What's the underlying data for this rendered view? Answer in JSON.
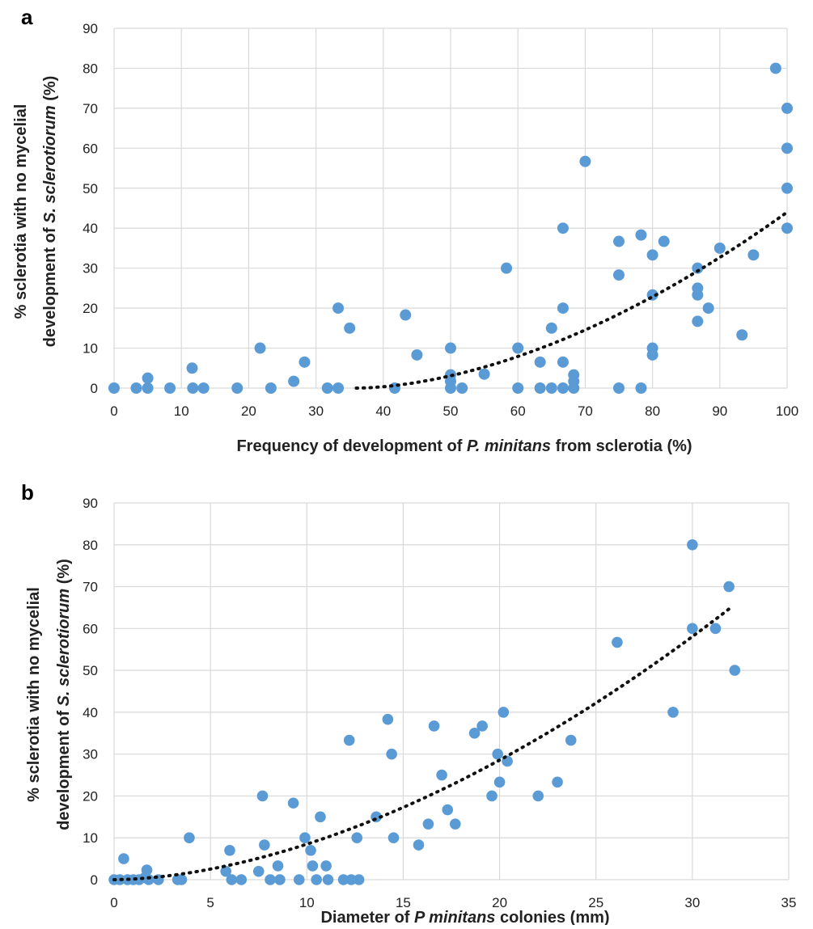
{
  "figure": {
    "panel_a": {
      "letter": "a"
    },
    "panel_b": {
      "letter": "b"
    }
  },
  "chart_data": [
    {
      "type": "scatter",
      "panel": "a",
      "title": "",
      "xlabel": {
        "pre": "Frequency of development of ",
        "italic": "P.  minitans",
        "post": " from sclerotia (%)"
      },
      "ylabel": {
        "line1": "% sclerotia with no mycelial",
        "line2_pre": "development of ",
        "line2_italic": "S. sclerotiorum",
        "line2_post": " (%)"
      },
      "xlim": [
        0,
        100
      ],
      "ylim": [
        0,
        90
      ],
      "xticks": [
        0,
        10,
        20,
        30,
        40,
        50,
        60,
        70,
        80,
        90,
        100
      ],
      "yticks": [
        0,
        10,
        20,
        30,
        40,
        50,
        60,
        70,
        80,
        90
      ],
      "grid": true,
      "marker_color": "#5b9bd5",
      "trendline": {
        "style": "dotted",
        "color": "#111111",
        "from": [
          36,
          0
        ],
        "to": [
          100,
          44
        ]
      },
      "points": [
        [
          0,
          0
        ],
        [
          3.3,
          0
        ],
        [
          5,
          0
        ],
        [
          5,
          2.5
        ],
        [
          8.3,
          0
        ],
        [
          11.6,
          5
        ],
        [
          11.7,
          0
        ],
        [
          13.3,
          0
        ],
        [
          18.3,
          0
        ],
        [
          21.7,
          10
        ],
        [
          23.3,
          0
        ],
        [
          26.7,
          1.7
        ],
        [
          28.3,
          6.5
        ],
        [
          31.7,
          0
        ],
        [
          33.3,
          0
        ],
        [
          33.3,
          20
        ],
        [
          35,
          15
        ],
        [
          41.7,
          0
        ],
        [
          43.3,
          18.3
        ],
        [
          45,
          8.3
        ],
        [
          50,
          10
        ],
        [
          50,
          3.3
        ],
        [
          50,
          1.7
        ],
        [
          50,
          0
        ],
        [
          51.7,
          0
        ],
        [
          55,
          3.5
        ],
        [
          58.3,
          30
        ],
        [
          60,
          10
        ],
        [
          60,
          0
        ],
        [
          63.3,
          6.5
        ],
        [
          63.3,
          0
        ],
        [
          65,
          15
        ],
        [
          65,
          0
        ],
        [
          66.7,
          40
        ],
        [
          66.7,
          20
        ],
        [
          66.7,
          6.5
        ],
        [
          66.7,
          0
        ],
        [
          68.3,
          3.3
        ],
        [
          68.3,
          1.7
        ],
        [
          68.3,
          0
        ],
        [
          70,
          56.7
        ],
        [
          75,
          36.7
        ],
        [
          75,
          28.3
        ],
        [
          75,
          0
        ],
        [
          78.3,
          38.3
        ],
        [
          78.3,
          0
        ],
        [
          80,
          33.3
        ],
        [
          80,
          23.3
        ],
        [
          80,
          10
        ],
        [
          80,
          8.3
        ],
        [
          81.7,
          36.7
        ],
        [
          86.7,
          30
        ],
        [
          86.7,
          25
        ],
        [
          86.7,
          23.3
        ],
        [
          86.7,
          16.7
        ],
        [
          88.3,
          20
        ],
        [
          90,
          35
        ],
        [
          93.3,
          13.3
        ],
        [
          95,
          33.3
        ],
        [
          98.3,
          80
        ],
        [
          100,
          70
        ],
        [
          100,
          60
        ],
        [
          100,
          50
        ],
        [
          100,
          40
        ]
      ]
    },
    {
      "type": "scatter",
      "panel": "b",
      "title": "",
      "xlabel": {
        "pre": "Diameter of ",
        "italic": "P  minitans",
        "post": " colonies (mm)"
      },
      "ylabel": {
        "line1": "% sclerotia with no mycelial",
        "line2_pre": "development of ",
        "line2_italic": "S. sclerotiorum",
        "line2_post": " (%)"
      },
      "xlim": [
        0,
        35
      ],
      "ylim": [
        0,
        90
      ],
      "xticks": [
        0,
        5,
        10,
        15,
        20,
        25,
        30,
        35
      ],
      "yticks": [
        0,
        10,
        20,
        30,
        40,
        50,
        60,
        70,
        80,
        90
      ],
      "grid": true,
      "marker_color": "#5b9bd5",
      "trendline": {
        "style": "dotted",
        "color": "#111111",
        "from": [
          0,
          0
        ],
        "to": [
          32,
          65
        ]
      },
      "points": [
        [
          0,
          0
        ],
        [
          0.3,
          0
        ],
        [
          0.5,
          5
        ],
        [
          0.7,
          0
        ],
        [
          1,
          0
        ],
        [
          1.3,
          0
        ],
        [
          1.6,
          0.5
        ],
        [
          1.7,
          2.3
        ],
        [
          1.8,
          0
        ],
        [
          2.3,
          0
        ],
        [
          3.3,
          0
        ],
        [
          3.5,
          0
        ],
        [
          3.9,
          10
        ],
        [
          5.8,
          2
        ],
        [
          6,
          7
        ],
        [
          6.1,
          0
        ],
        [
          6.6,
          0
        ],
        [
          7.5,
          2
        ],
        [
          7.7,
          20
        ],
        [
          7.8,
          8.3
        ],
        [
          8.1,
          0
        ],
        [
          8.5,
          3.3
        ],
        [
          8.6,
          0
        ],
        [
          9.3,
          18.3
        ],
        [
          9.6,
          0
        ],
        [
          9.9,
          10
        ],
        [
          10.2,
          7
        ],
        [
          10.3,
          3.3
        ],
        [
          10.5,
          0
        ],
        [
          10.7,
          15
        ],
        [
          11,
          3.3
        ],
        [
          11.1,
          0
        ],
        [
          11.9,
          0
        ],
        [
          12.2,
          33.3
        ],
        [
          12.3,
          0
        ],
        [
          12.6,
          10
        ],
        [
          12.7,
          0
        ],
        [
          13.6,
          15
        ],
        [
          14.2,
          38.3
        ],
        [
          14.4,
          30
        ],
        [
          14.5,
          10
        ],
        [
          15.8,
          8.3
        ],
        [
          16.3,
          13.3
        ],
        [
          16.6,
          36.7
        ],
        [
          17,
          25
        ],
        [
          17.3,
          16.7
        ],
        [
          17.7,
          13.3
        ],
        [
          18.7,
          35
        ],
        [
          19.1,
          36.7
        ],
        [
          19.6,
          20
        ],
        [
          19.9,
          30
        ],
        [
          20,
          23.3
        ],
        [
          20.2,
          40
        ],
        [
          20.4,
          28.3
        ],
        [
          22,
          20
        ],
        [
          23,
          23.3
        ],
        [
          23.7,
          33.3
        ],
        [
          26.1,
          56.7
        ],
        [
          29,
          40
        ],
        [
          30,
          80
        ],
        [
          30,
          60
        ],
        [
          31.2,
          60
        ],
        [
          31.9,
          70
        ],
        [
          32.2,
          50
        ]
      ]
    }
  ]
}
